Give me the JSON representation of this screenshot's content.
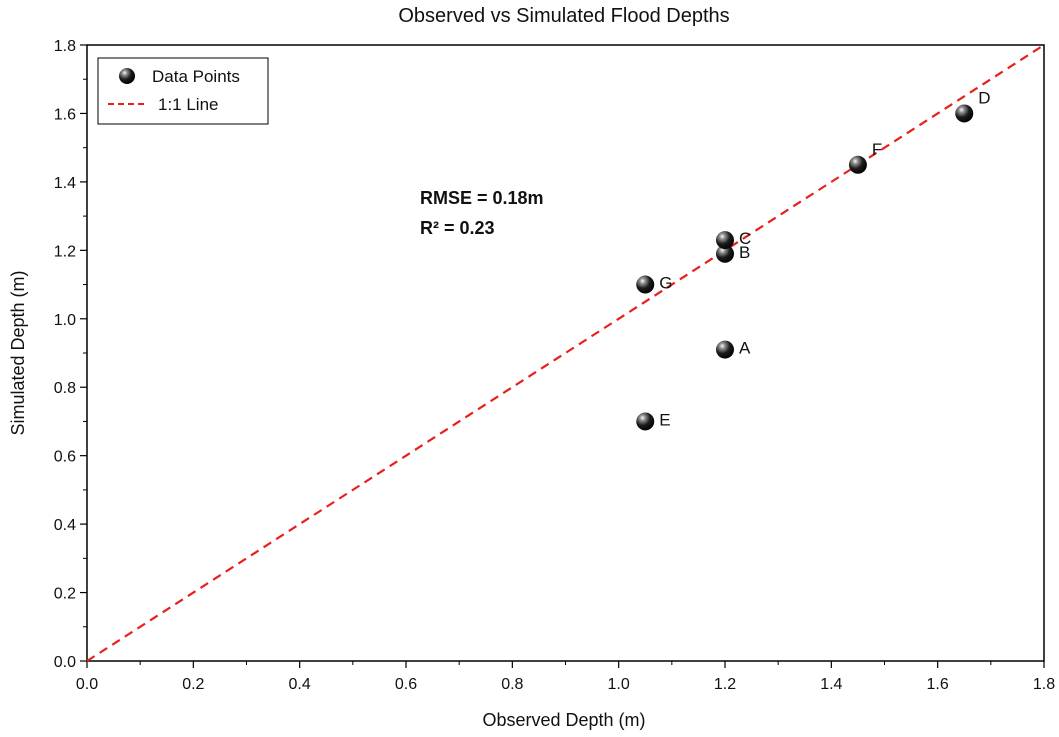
{
  "chart_data": {
    "type": "scatter",
    "title": "Observed vs Simulated Flood Depths",
    "xlabel": "Observed Depth (m)",
    "ylabel": "Simulated Depth (m)",
    "xlim": [
      0,
      1.8
    ],
    "ylim": [
      0,
      1.8
    ],
    "xticks": [
      "0.0",
      "0.2",
      "0.4",
      "0.6",
      "0.8",
      "1.0",
      "1.2",
      "1.4",
      "1.6",
      "1.8"
    ],
    "yticks": [
      "0.0",
      "0.2",
      "0.4",
      "0.6",
      "0.8",
      "1.0",
      "1.2",
      "1.4",
      "1.6",
      "1.8"
    ],
    "grid": false,
    "legend_position": "top-left",
    "series": [
      {
        "name": "Data Points",
        "kind": "scatter",
        "color": "#000000",
        "points": [
          {
            "label": "A",
            "x": 1.2,
            "y": 0.91
          },
          {
            "label": "B",
            "x": 1.2,
            "y": 1.19
          },
          {
            "label": "C",
            "x": 1.2,
            "y": 1.23
          },
          {
            "label": "D",
            "x": 1.65,
            "y": 1.6
          },
          {
            "label": "E",
            "x": 1.05,
            "y": 0.7
          },
          {
            "label": "F",
            "x": 1.45,
            "y": 1.45
          },
          {
            "label": "G",
            "x": 1.05,
            "y": 1.1
          }
        ]
      },
      {
        "name": "1:1 Line",
        "kind": "line",
        "style": "dashed",
        "color": "#e8201c",
        "x": [
          0,
          1.8
        ],
        "y": [
          0,
          1.8
        ]
      }
    ],
    "annotations": {
      "rmse": "RMSE = 0.18m",
      "r2": "R² = 0.23"
    }
  }
}
